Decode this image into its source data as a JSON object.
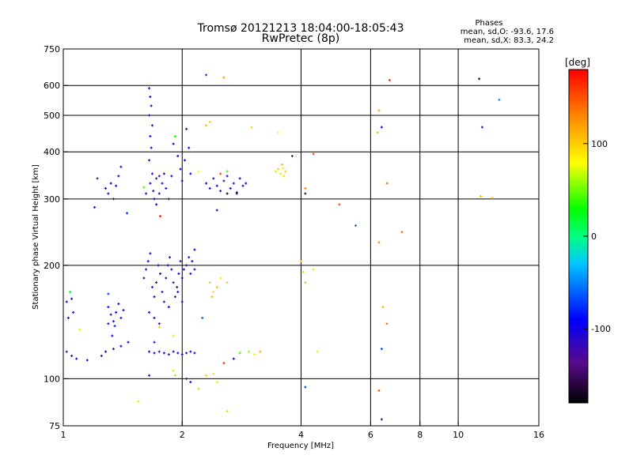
{
  "header": {
    "title_line1": "Tromsø 20121213 18:04:00-18:05:43",
    "title_line2": "RwPretec (8p)",
    "phases_title": "Phases",
    "phases_o": "mean, sd,O: -93.6, 17.6",
    "phases_x": "mean, sd,X: 83.3, 24.2"
  },
  "chart_data": {
    "type": "scatter",
    "xlabel": "Frequency [MHz]",
    "ylabel": "Stationary phase Virtual Height [km]",
    "xscale": "log",
    "yscale": "log",
    "xlim": [
      1,
      16
    ],
    "ylim": [
      75,
      750
    ],
    "xticks": [
      1,
      2,
      4,
      6,
      8,
      10,
      16
    ],
    "xtick_labels": [
      "1",
      "2",
      "4",
      "6",
      "8",
      "10",
      "16"
    ],
    "xgrid": [
      2,
      4,
      6,
      8,
      10
    ],
    "yticks": [
      75,
      100,
      200,
      300,
      400,
      500,
      600,
      750
    ],
    "ytick_labels": [
      "75",
      "100",
      "200",
      "300",
      "400",
      "500",
      "600",
      "750"
    ],
    "ygrid": [
      100,
      200,
      300,
      400,
      500,
      600
    ],
    "grid": true,
    "colorbar": {
      "title": "[deg]",
      "range": [
        -180,
        180
      ],
      "ticks": [
        100,
        0,
        -100
      ],
      "tick_labels": [
        "100",
        "0",
        "-100"
      ]
    },
    "points": [
      {
        "f": 1.02,
        "h": 160,
        "p": -110
      },
      {
        "f": 1.05,
        "h": 163,
        "p": -105
      },
      {
        "f": 1.03,
        "h": 145,
        "p": -100
      },
      {
        "f": 1.06,
        "h": 150,
        "p": -115
      },
      {
        "f": 1.02,
        "h": 118,
        "p": -120
      },
      {
        "f": 1.05,
        "h": 115,
        "p": -110
      },
      {
        "f": 1.08,
        "h": 113,
        "p": -105
      },
      {
        "f": 1.04,
        "h": 170,
        "p": 20
      },
      {
        "f": 1.1,
        "h": 135,
        "p": 70
      },
      {
        "f": 1.15,
        "h": 112,
        "p": -110
      },
      {
        "f": 1.2,
        "h": 285,
        "p": -120
      },
      {
        "f": 1.22,
        "h": 340,
        "p": -125
      },
      {
        "f": 1.28,
        "h": 320,
        "p": -110
      },
      {
        "f": 1.3,
        "h": 310,
        "p": -100
      },
      {
        "f": 1.32,
        "h": 330,
        "p": -105
      },
      {
        "f": 1.34,
        "h": 300,
        "p": -115
      },
      {
        "f": 1.36,
        "h": 325,
        "p": -100
      },
      {
        "f": 1.38,
        "h": 345,
        "p": -105
      },
      {
        "f": 1.4,
        "h": 365,
        "p": -110
      },
      {
        "f": 1.45,
        "h": 275,
        "p": -80
      },
      {
        "f": 1.3,
        "h": 155,
        "p": -100
      },
      {
        "f": 1.32,
        "h": 148,
        "p": -110
      },
      {
        "f": 1.34,
        "h": 142,
        "p": -115
      },
      {
        "f": 1.36,
        "h": 150,
        "p": -95
      },
      {
        "f": 1.38,
        "h": 158,
        "p": -100
      },
      {
        "f": 1.4,
        "h": 145,
        "p": -110
      },
      {
        "f": 1.42,
        "h": 152,
        "p": -105
      },
      {
        "f": 1.3,
        "h": 140,
        "p": -85
      },
      {
        "f": 1.33,
        "h": 130,
        "p": -90
      },
      {
        "f": 1.35,
        "h": 138,
        "p": -80
      },
      {
        "f": 1.28,
        "h": 118,
        "p": -100
      },
      {
        "f": 1.34,
        "h": 120,
        "p": -110
      },
      {
        "f": 1.4,
        "h": 122,
        "p": -105
      },
      {
        "f": 1.46,
        "h": 125,
        "p": -100
      },
      {
        "f": 1.3,
        "h": 168,
        "p": -70
      },
      {
        "f": 1.25,
        "h": 115,
        "p": -115
      },
      {
        "f": 1.55,
        "h": 87,
        "p": 90
      },
      {
        "f": 1.6,
        "h": 322,
        "p": 40
      },
      {
        "f": 1.62,
        "h": 310,
        "p": -110
      },
      {
        "f": 1.65,
        "h": 590,
        "p": -115
      },
      {
        "f": 1.66,
        "h": 560,
        "p": -110
      },
      {
        "f": 1.67,
        "h": 530,
        "p": -100
      },
      {
        "f": 1.65,
        "h": 500,
        "p": -105
      },
      {
        "f": 1.68,
        "h": 470,
        "p": -110
      },
      {
        "f": 1.66,
        "h": 440,
        "p": -115
      },
      {
        "f": 1.67,
        "h": 410,
        "p": -100
      },
      {
        "f": 1.65,
        "h": 380,
        "p": -110
      },
      {
        "f": 1.68,
        "h": 350,
        "p": -115
      },
      {
        "f": 1.66,
        "h": 330,
        "p": -105
      },
      {
        "f": 1.69,
        "h": 315,
        "p": -110
      },
      {
        "f": 1.7,
        "h": 300,
        "p": -100
      },
      {
        "f": 1.72,
        "h": 340,
        "p": -120
      },
      {
        "f": 1.75,
        "h": 310,
        "p": -110
      },
      {
        "f": 1.78,
        "h": 330,
        "p": -115
      },
      {
        "f": 1.8,
        "h": 350,
        "p": -105
      },
      {
        "f": 1.82,
        "h": 320,
        "p": -110
      },
      {
        "f": 1.85,
        "h": 300,
        "p": -120
      },
      {
        "f": 1.88,
        "h": 345,
        "p": -110
      },
      {
        "f": 1.9,
        "h": 420,
        "p": -100
      },
      {
        "f": 1.92,
        "h": 440,
        "p": 35
      },
      {
        "f": 1.95,
        "h": 390,
        "p": -105
      },
      {
        "f": 1.98,
        "h": 360,
        "p": -110
      },
      {
        "f": 2.0,
        "h": 335,
        "p": -115
      },
      {
        "f": 2.03,
        "h": 380,
        "p": -105
      },
      {
        "f": 2.05,
        "h": 460,
        "p": -100
      },
      {
        "f": 2.08,
        "h": 410,
        "p": -95
      },
      {
        "f": 2.1,
        "h": 350,
        "p": -110
      },
      {
        "f": 1.75,
        "h": 345,
        "p": -125
      },
      {
        "f": 1.72,
        "h": 290,
        "p": -100
      },
      {
        "f": 1.76,
        "h": 270,
        "p": 170
      },
      {
        "f": 2.3,
        "h": 640,
        "p": -70
      },
      {
        "f": 2.55,
        "h": 630,
        "p": 120
      },
      {
        "f": 2.2,
        "h": 355,
        "p": 80
      },
      {
        "f": 2.35,
        "h": 480,
        "p": 100
      },
      {
        "f": 2.3,
        "h": 470,
        "p": 110
      },
      {
        "f": 2.3,
        "h": 330,
        "p": -110
      },
      {
        "f": 2.35,
        "h": 320,
        "p": -105
      },
      {
        "f": 2.4,
        "h": 340,
        "p": -115
      },
      {
        "f": 2.45,
        "h": 325,
        "p": -100
      },
      {
        "f": 2.5,
        "h": 315,
        "p": -110
      },
      {
        "f": 2.55,
        "h": 335,
        "p": -120
      },
      {
        "f": 2.6,
        "h": 345,
        "p": -105
      },
      {
        "f": 2.65,
        "h": 320,
        "p": -110
      },
      {
        "f": 2.7,
        "h": 330,
        "p": -115
      },
      {
        "f": 2.75,
        "h": 310,
        "p": -125
      },
      {
        "f": 2.8,
        "h": 340,
        "p": -100
      },
      {
        "f": 2.85,
        "h": 325,
        "p": -110
      },
      {
        "f": 2.9,
        "h": 330,
        "p": -105
      },
      {
        "f": 2.6,
        "h": 310,
        "p": -170
      },
      {
        "f": 2.75,
        "h": 312,
        "p": -160
      },
      {
        "f": 2.45,
        "h": 280,
        "p": -110
      },
      {
        "f": 2.6,
        "h": 355,
        "p": 40
      },
      {
        "f": 2.5,
        "h": 350,
        "p": 150
      },
      {
        "f": 3.0,
        "h": 465,
        "p": 100
      },
      {
        "f": 3.5,
        "h": 450,
        "p": 80
      },
      {
        "f": 3.45,
        "h": 355,
        "p": 95
      },
      {
        "f": 3.5,
        "h": 360,
        "p": 100
      },
      {
        "f": 3.55,
        "h": 350,
        "p": 90
      },
      {
        "f": 3.6,
        "h": 362,
        "p": 85
      },
      {
        "f": 3.65,
        "h": 355,
        "p": 100
      },
      {
        "f": 3.62,
        "h": 345,
        "p": 95
      },
      {
        "f": 3.58,
        "h": 370,
        "p": 105
      },
      {
        "f": 3.8,
        "h": 390,
        "p": -140
      },
      {
        "f": 4.1,
        "h": 320,
        "p": 130
      },
      {
        "f": 4.1,
        "h": 310,
        "p": -150
      },
      {
        "f": 4.3,
        "h": 395,
        "p": 150
      },
      {
        "f": 5.0,
        "h": 290,
        "p": 150
      },
      {
        "f": 5.5,
        "h": 255,
        "p": -60
      },
      {
        "f": 6.3,
        "h": 515,
        "p": 120
      },
      {
        "f": 6.25,
        "h": 450,
        "p": 110
      },
      {
        "f": 6.4,
        "h": 465,
        "p": -90
      },
      {
        "f": 6.6,
        "h": 330,
        "p": 140
      },
      {
        "f": 6.3,
        "h": 230,
        "p": 130
      },
      {
        "f": 7.2,
        "h": 245,
        "p": 140
      },
      {
        "f": 6.7,
        "h": 620,
        "p": 165
      },
      {
        "f": 6.45,
        "h": 155,
        "p": 110
      },
      {
        "f": 6.6,
        "h": 140,
        "p": 140
      },
      {
        "f": 6.4,
        "h": 120,
        "p": -70
      },
      {
        "f": 6.3,
        "h": 93,
        "p": 150
      },
      {
        "f": 6.4,
        "h": 78,
        "p": -120
      },
      {
        "f": 4.0,
        "h": 205,
        "p": 110
      },
      {
        "f": 4.05,
        "h": 192,
        "p": 100
      },
      {
        "f": 4.1,
        "h": 180,
        "p": 105
      },
      {
        "f": 4.3,
        "h": 195,
        "p": 90
      },
      {
        "f": 4.4,
        "h": 118,
        "p": 90
      },
      {
        "f": 4.1,
        "h": 95,
        "p": -70
      },
      {
        "f": 1.6,
        "h": 185,
        "p": -110
      },
      {
        "f": 1.62,
        "h": 195,
        "p": -115
      },
      {
        "f": 1.64,
        "h": 205,
        "p": -105
      },
      {
        "f": 1.66,
        "h": 215,
        "p": -110
      },
      {
        "f": 1.68,
        "h": 175,
        "p": -120
      },
      {
        "f": 1.7,
        "h": 165,
        "p": -110
      },
      {
        "f": 1.72,
        "h": 180,
        "p": -115
      },
      {
        "f": 1.74,
        "h": 200,
        "p": -100
      },
      {
        "f": 1.76,
        "h": 190,
        "p": -110
      },
      {
        "f": 1.78,
        "h": 170,
        "p": -120
      },
      {
        "f": 1.8,
        "h": 160,
        "p": -110
      },
      {
        "f": 1.82,
        "h": 185,
        "p": -115
      },
      {
        "f": 1.84,
        "h": 200,
        "p": -105
      },
      {
        "f": 1.86,
        "h": 210,
        "p": -110
      },
      {
        "f": 1.88,
        "h": 195,
        "p": -115
      },
      {
        "f": 1.9,
        "h": 180,
        "p": -120
      },
      {
        "f": 1.92,
        "h": 165,
        "p": -110
      },
      {
        "f": 1.94,
        "h": 175,
        "p": -105
      },
      {
        "f": 1.96,
        "h": 190,
        "p": -110
      },
      {
        "f": 1.98,
        "h": 205,
        "p": -115
      },
      {
        "f": 2.0,
        "h": 185,
        "p": -110
      },
      {
        "f": 2.02,
        "h": 195,
        "p": -105
      },
      {
        "f": 2.05,
        "h": 200,
        "p": -110
      },
      {
        "f": 2.08,
        "h": 210,
        "p": -115
      },
      {
        "f": 2.1,
        "h": 190,
        "p": -110
      },
      {
        "f": 2.12,
        "h": 205,
        "p": -105
      },
      {
        "f": 2.15,
        "h": 195,
        "p": -110
      },
      {
        "f": 1.65,
        "h": 150,
        "p": -115
      },
      {
        "f": 1.7,
        "h": 145,
        "p": -110
      },
      {
        "f": 1.75,
        "h": 140,
        "p": -120
      },
      {
        "f": 1.85,
        "h": 155,
        "p": -110
      },
      {
        "f": 1.95,
        "h": 170,
        "p": -115
      },
      {
        "f": 2.0,
        "h": 160,
        "p": -120
      },
      {
        "f": 1.9,
        "h": 130,
        "p": 90
      },
      {
        "f": 1.7,
        "h": 125,
        "p": -80
      },
      {
        "f": 2.15,
        "h": 220,
        "p": -100
      },
      {
        "f": 1.65,
        "h": 118,
        "p": -110
      },
      {
        "f": 1.7,
        "h": 117,
        "p": -105
      },
      {
        "f": 1.75,
        "h": 118,
        "p": -115
      },
      {
        "f": 1.8,
        "h": 117,
        "p": -110
      },
      {
        "f": 1.85,
        "h": 116,
        "p": -120
      },
      {
        "f": 1.9,
        "h": 118,
        "p": -110
      },
      {
        "f": 1.95,
        "h": 117,
        "p": -105
      },
      {
        "f": 2.0,
        "h": 116,
        "p": -110
      },
      {
        "f": 2.05,
        "h": 117,
        "p": -115
      },
      {
        "f": 2.1,
        "h": 118,
        "p": -110
      },
      {
        "f": 2.15,
        "h": 117,
        "p": -105
      },
      {
        "f": 1.65,
        "h": 102,
        "p": -120
      },
      {
        "f": 1.9,
        "h": 105,
        "p": 90
      },
      {
        "f": 1.92,
        "h": 102,
        "p": 60
      },
      {
        "f": 2.05,
        "h": 100,
        "p": -130
      },
      {
        "f": 2.1,
        "h": 98,
        "p": -110
      },
      {
        "f": 2.2,
        "h": 94,
        "p": 100
      },
      {
        "f": 2.3,
        "h": 102,
        "p": 100
      },
      {
        "f": 2.4,
        "h": 103,
        "p": 95
      },
      {
        "f": 2.45,
        "h": 98,
        "p": 90
      },
      {
        "f": 2.55,
        "h": 110,
        "p": 160
      },
      {
        "f": 2.6,
        "h": 82,
        "p": 100
      },
      {
        "f": 2.7,
        "h": 113,
        "p": -90
      },
      {
        "f": 2.8,
        "h": 117,
        "p": 40
      },
      {
        "f": 2.95,
        "h": 118,
        "p": 60
      },
      {
        "f": 3.05,
        "h": 116,
        "p": 90
      },
      {
        "f": 3.15,
        "h": 118,
        "p": 110
      },
      {
        "f": 2.35,
        "h": 180,
        "p": 100
      },
      {
        "f": 2.4,
        "h": 170,
        "p": 95
      },
      {
        "f": 2.45,
        "h": 175,
        "p": 105
      },
      {
        "f": 2.5,
        "h": 185,
        "p": 90
      },
      {
        "f": 2.6,
        "h": 180,
        "p": 100
      },
      {
        "f": 2.38,
        "h": 165,
        "p": 110
      },
      {
        "f": 2.25,
        "h": 145,
        "p": -60
      },
      {
        "f": 1.75,
        "h": 137,
        "p": 100
      },
      {
        "f": 11.3,
        "h": 625,
        "p": -150
      },
      {
        "f": 11.5,
        "h": 465,
        "p": -120
      },
      {
        "f": 12.7,
        "h": 550,
        "p": -50
      },
      {
        "f": 11.4,
        "h": 305,
        "p": 110
      },
      {
        "f": 12.2,
        "h": 302,
        "p": 100
      }
    ]
  }
}
